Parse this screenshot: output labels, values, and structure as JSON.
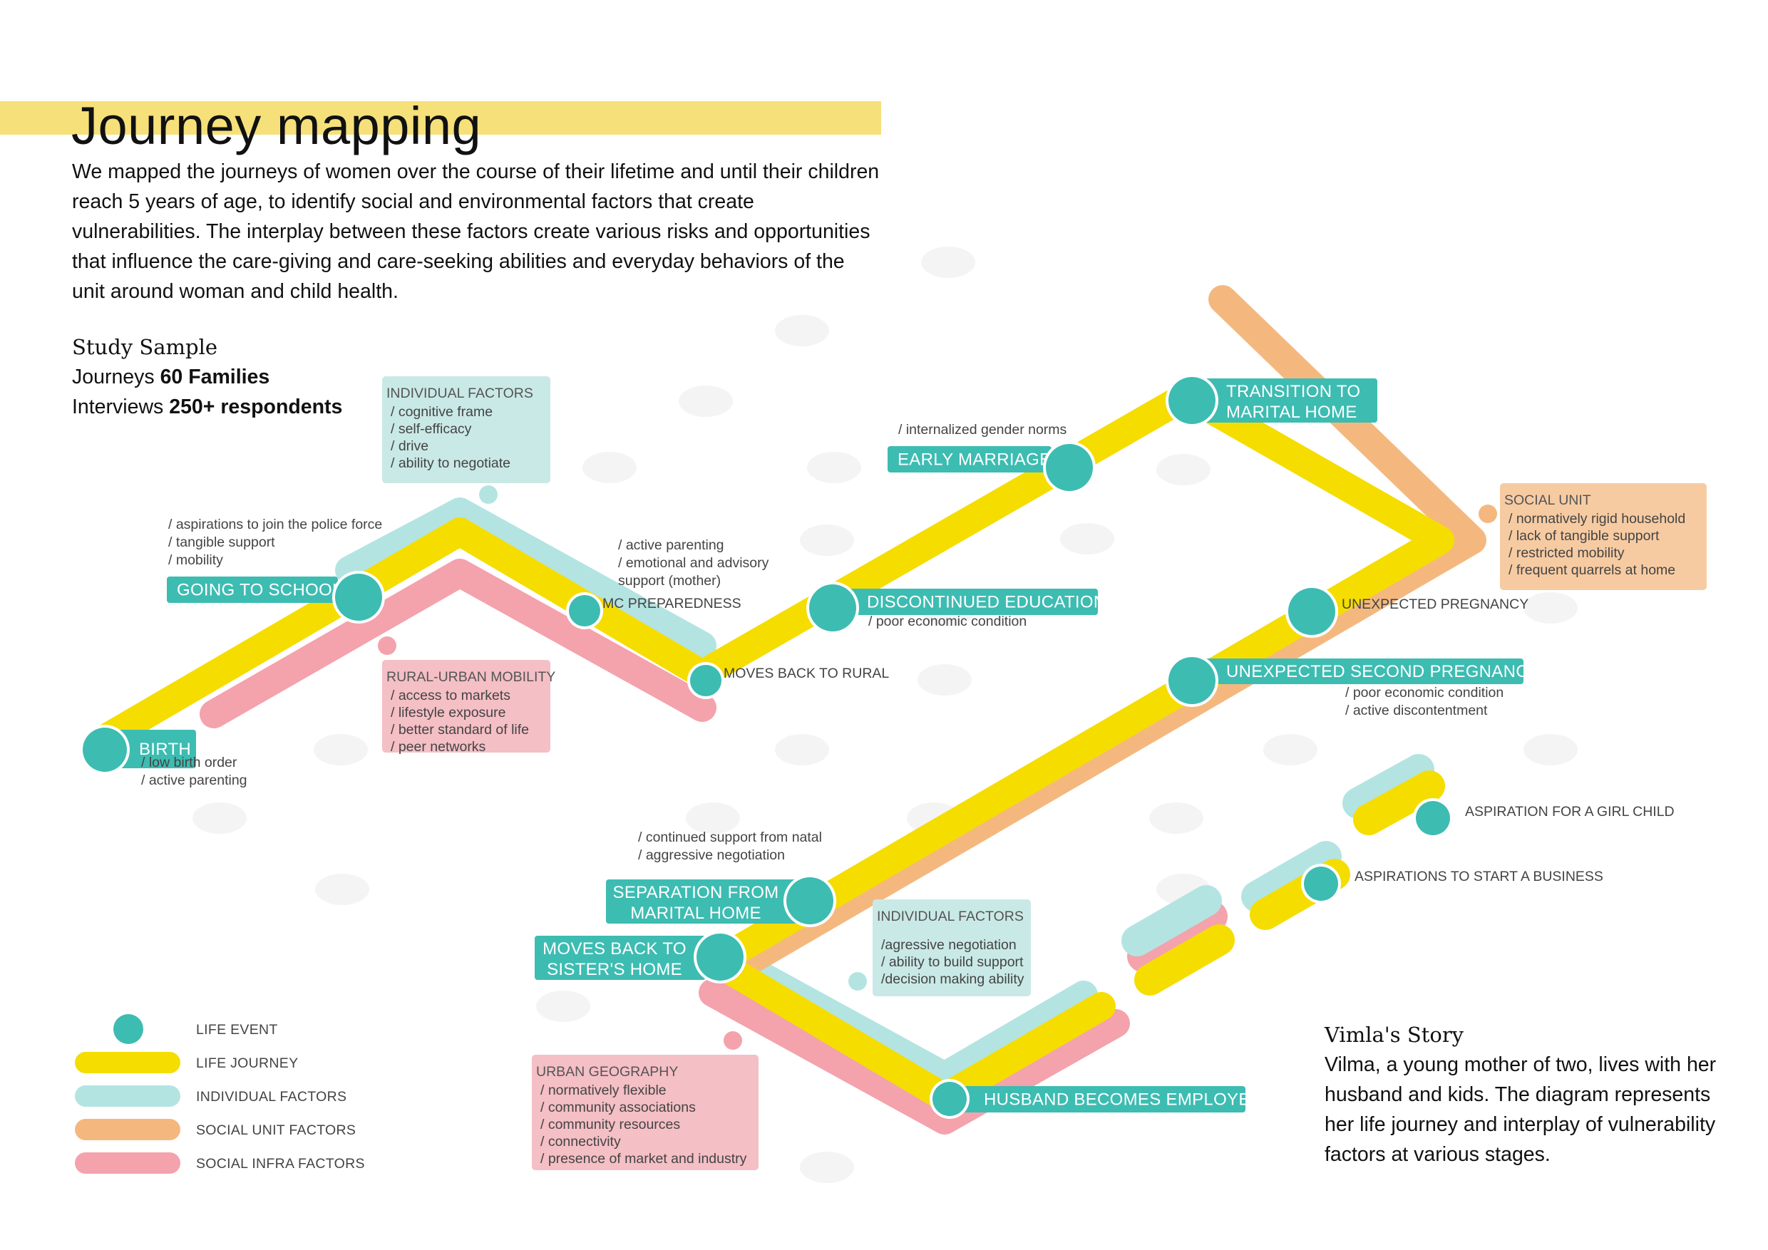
{
  "page": {
    "title": "Journey mapping",
    "intro": "We mapped the journeys of women over the course of their lifetime and until their children reach 5 years of age, to identify social and environmental factors that create vulnerabilities. The interplay between these factors create various risks and opportunities that influence the care-giving and care-seeking abilities and everyday behaviors of the unit around woman and child health.",
    "study_sample": {
      "heading": "Study Sample",
      "journeys_label": "Journeys",
      "journeys_value": "60 Families",
      "interviews_label": "Interviews",
      "interviews_value": "250+ respondents"
    },
    "story": {
      "heading": "Vimla's Story",
      "text": "Vilma, a young mother of two, lives with her husband and kids. The diagram represents her life journey and interplay of vulnerability factors at various stages."
    }
  },
  "colors": {
    "life_event": "#3dbcb2",
    "life_journey": "#f5dd00",
    "individual_factors": "#b3e4e2",
    "social_unit_factors": "#f4b87f",
    "social_infra_factors": "#f4a2ac",
    "title_highlight": "#f6e07a",
    "individual_box": "#c9e9e6",
    "social_unit_box": "#f7cba2",
    "social_infra_box": "#f4bfc5"
  },
  "events": [
    {
      "id": "birth",
      "lines": [
        "BIRTH"
      ]
    },
    {
      "id": "going-to-school",
      "lines": [
        "GOING TO SCHOOL"
      ]
    },
    {
      "id": "mc-preparedness",
      "lines": [
        "MC PREPAREDNESS"
      ]
    },
    {
      "id": "moves-back-to-rural",
      "lines": [
        "MOVES BACK TO RURAL"
      ]
    },
    {
      "id": "discontinued-education",
      "lines": [
        "DISCONTINUED EDUCATION"
      ]
    },
    {
      "id": "early-marriage",
      "lines": [
        "EARLY MARRIAGE"
      ]
    },
    {
      "id": "transition-to-marital-home",
      "lines": [
        "TRANSITION TO",
        "MARITAL HOME"
      ]
    },
    {
      "id": "unexpected-pregnancy",
      "lines": [
        "UNEXPECTED PREGNANCY"
      ]
    },
    {
      "id": "unexpected-second-pregnancy",
      "lines": [
        "UNEXPECTED SECOND PREGNANCY"
      ]
    },
    {
      "id": "separation-from-marital-home",
      "lines": [
        "SEPARATION FROM",
        "MARITAL HOME"
      ]
    },
    {
      "id": "moves-back-to-sisters-home",
      "lines": [
        "MOVES BACK TO",
        "SISTER'S HOME"
      ]
    },
    {
      "id": "husband-becomes-employed",
      "lines": [
        "HUSBAND BECOMES EMPLOYED"
      ]
    },
    {
      "id": "aspirations-to-start-a-business",
      "lines": [
        "ASPIRATIONS TO START A BUSINESS"
      ]
    },
    {
      "id": "aspiration-for-a-girl-child",
      "lines": [
        "ASPIRATION FOR A GIRL CHILD"
      ]
    }
  ],
  "notes": [
    {
      "id": "birth-notes",
      "lines": [
        "/ low birth order",
        "/ active parenting"
      ]
    },
    {
      "id": "school-notes",
      "lines": [
        "/ aspirations to join the police force",
        "/ tangible support",
        "/ mobility"
      ]
    },
    {
      "id": "mc-notes",
      "lines": [
        "/ active parenting",
        "/ emotional and advisory",
        "  support (mother)"
      ]
    },
    {
      "id": "education-notes",
      "lines": [
        "/ poor economic condition"
      ]
    },
    {
      "id": "marriage-notes",
      "lines": [
        "/ internalized gender norms"
      ]
    },
    {
      "id": "second-pregnancy-notes",
      "lines": [
        "/ poor economic condition",
        "/ active discontentment"
      ]
    },
    {
      "id": "separation-notes",
      "lines": [
        "/ continued support from natal",
        "/ aggressive negotiation"
      ]
    }
  ],
  "factor_boxes": [
    {
      "id": "individual-factors-1",
      "kind": "individual",
      "heading": "INDIVIDUAL FACTORS",
      "items": [
        "/ cognitive frame",
        "/ self-efficacy",
        "/ drive",
        "/ ability to negotiate"
      ]
    },
    {
      "id": "rural-urban-mobility",
      "kind": "social_infra",
      "heading": "RURAL-URBAN MOBILITY",
      "items": [
        "/ access to markets",
        "/ lifestyle exposure",
        "/ better standard of life",
        "/ peer networks"
      ]
    },
    {
      "id": "social-unit",
      "kind": "social_unit",
      "heading": "SOCIAL UNIT",
      "items": [
        "/ normatively rigid household",
        "/ lack of tangible support",
        "/ restricted mobility",
        "/ frequent quarrels at home"
      ]
    },
    {
      "id": "individual-factors-2",
      "kind": "individual",
      "heading": "INDIVIDUAL FACTORS",
      "items": [
        "/agressive negotiation",
        "/ ability to build support",
        "/decision making ability"
      ]
    },
    {
      "id": "urban-geography",
      "kind": "social_infra",
      "heading": "URBAN GEOGRAPHY",
      "items": [
        "/ normatively flexible",
        "/ community associations",
        "/ community resources",
        "/ connectivity",
        "/ presence of market and industry"
      ]
    }
  ],
  "legend": [
    {
      "id": "life-event",
      "label": "LIFE EVENT",
      "kind": "dot",
      "color": "#3dbcb2"
    },
    {
      "id": "life-journey",
      "label": "LIFE JOURNEY",
      "kind": "bar",
      "color": "#f5dd00"
    },
    {
      "id": "individual-factors",
      "label": "INDIVIDUAL FACTORS",
      "kind": "bar",
      "color": "#b3e4e2"
    },
    {
      "id": "social-unit-factors",
      "label": "SOCIAL UNIT FACTORS",
      "kind": "bar",
      "color": "#f4b87f"
    },
    {
      "id": "social-infra-factors",
      "label": "SOCIAL INFRA FACTORS",
      "kind": "bar",
      "color": "#f4a2ac"
    }
  ]
}
